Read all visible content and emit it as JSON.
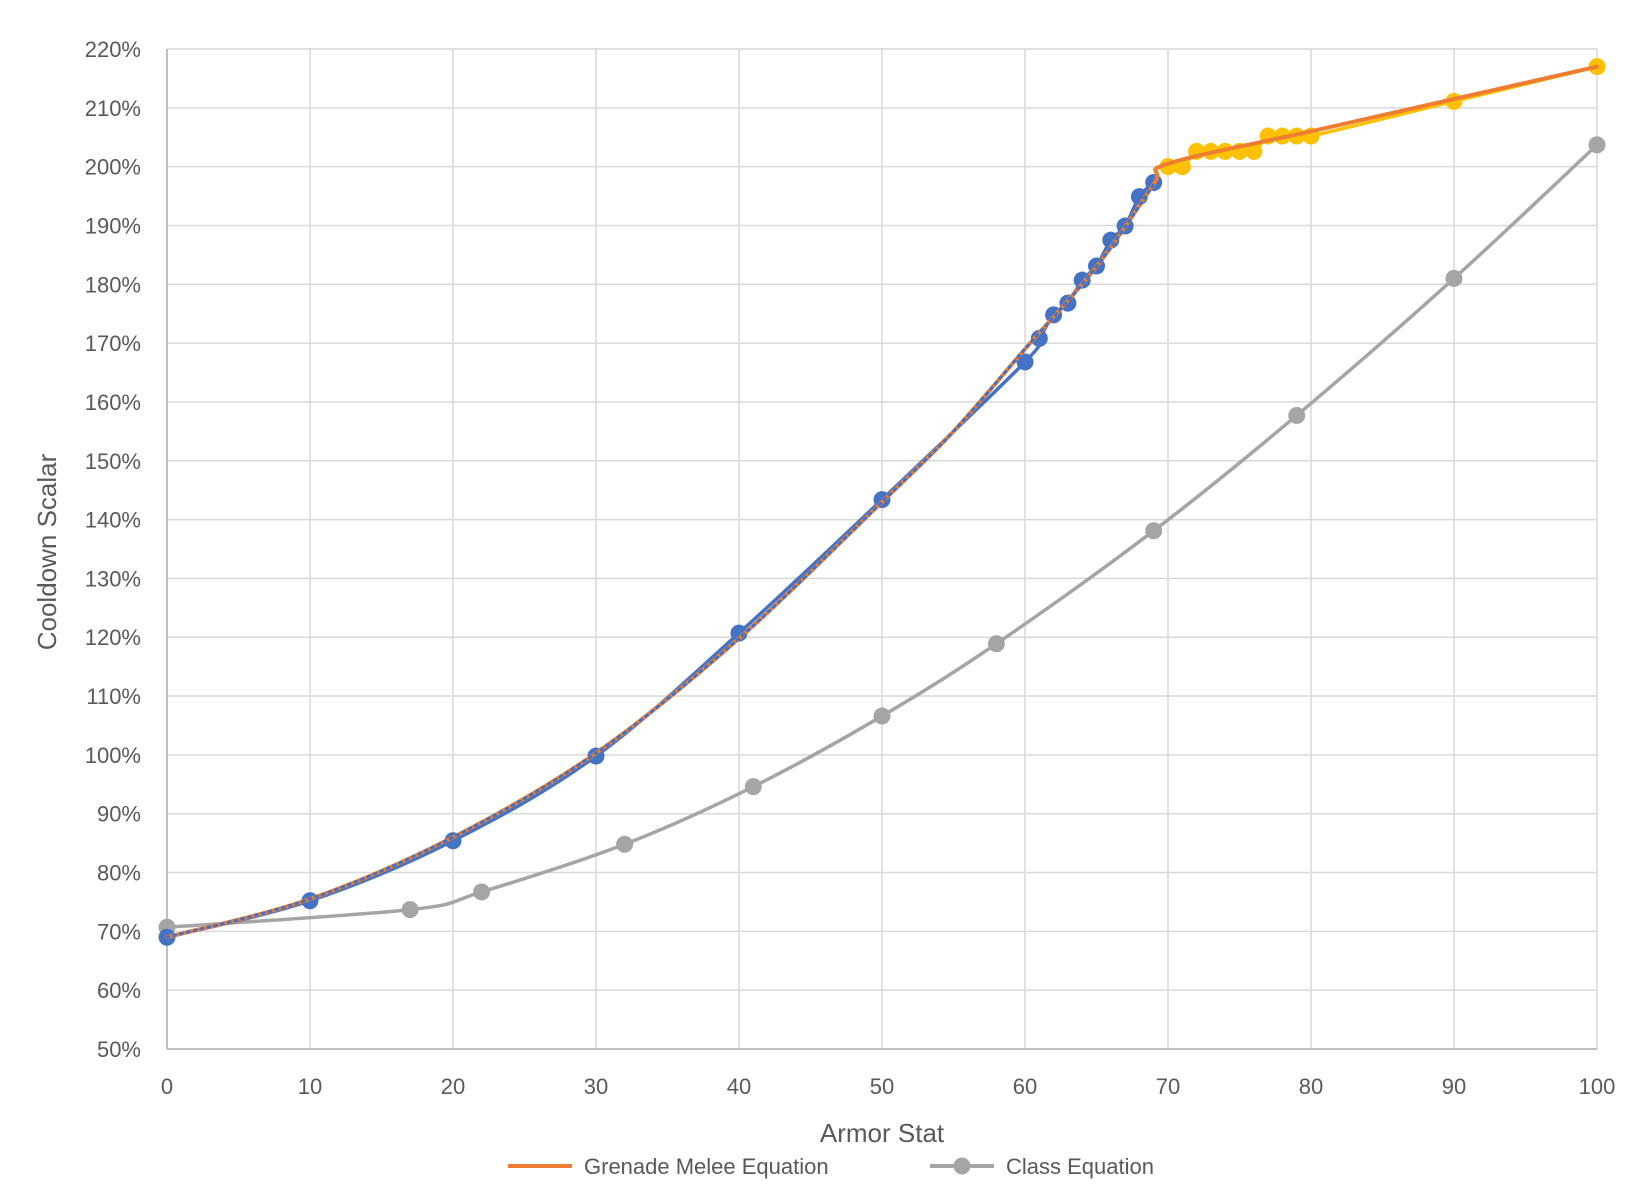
{
  "chart_data": {
    "type": "line",
    "title": "",
    "xlabel": "Armor Stat",
    "ylabel": "Cooldown Scalar",
    "xlim": [
      0,
      100
    ],
    "ylim": [
      0.5,
      2.2
    ],
    "x_ticks": [
      0,
      10,
      20,
      30,
      40,
      50,
      60,
      70,
      80,
      90,
      100
    ],
    "x_tick_labels": [
      "0",
      "10",
      "20",
      "30",
      "40",
      "50",
      "60",
      "70",
      "80",
      "90",
      "100"
    ],
    "y_ticks": [
      0.5,
      0.6,
      0.7,
      0.8,
      0.9,
      1.0,
      1.1,
      1.2,
      1.3,
      1.4,
      1.5,
      1.6,
      1.7,
      1.8,
      1.9,
      2.0,
      2.1,
      2.2
    ],
    "y_tick_labels": [
      "50%",
      "60%",
      "70%",
      "80%",
      "90%",
      "100%",
      "110%",
      "120%",
      "130%",
      "140%",
      "150%",
      "160%",
      "170%",
      "180%",
      "190%",
      "200%",
      "210%",
      "220%"
    ],
    "grid": true,
    "legend_position": "bottom",
    "legend": [
      {
        "label": "Grenade Melee Equation",
        "color": "#ED7D31",
        "marker": false
      },
      {
        "label": "Class Equation",
        "color": "#A5A5A5",
        "marker": true
      }
    ],
    "series": [
      {
        "color": "#4472C4",
        "marker": true,
        "x": [
          0,
          10,
          20,
          30,
          40,
          50,
          60,
          61,
          62,
          63,
          64,
          65,
          66,
          67,
          68,
          69
        ],
        "y": [
          0.69,
          0.752,
          0.854,
          0.998,
          1.207,
          1.434,
          1.668,
          1.708,
          1.748,
          1.768,
          1.807,
          1.831,
          1.875,
          1.899,
          1.949,
          1.973
        ]
      },
      {
        "color": "#FFC000",
        "marker": true,
        "x": [
          70,
          71,
          72,
          73,
          74,
          75,
          76,
          77,
          78,
          79,
          80,
          90,
          100
        ],
        "y": [
          2.0,
          2.0,
          2.026,
          2.026,
          2.026,
          2.026,
          2.026,
          2.052,
          2.052,
          2.052,
          2.052,
          2.111,
          2.17
        ]
      },
      {
        "name": "Grenade Melee Equation",
        "color": "#ED7D31",
        "marker": false,
        "x": [
          0,
          10,
          20,
          30,
          40,
          50,
          55,
          60,
          65,
          69,
          70,
          80,
          90,
          100
        ],
        "y": [
          0.69,
          0.755,
          0.86,
          1.003,
          1.198,
          1.43,
          1.55,
          1.69,
          1.83,
          1.97,
          2.005,
          2.06,
          2.115,
          2.17
        ]
      },
      {
        "name": "Class Equation",
        "color": "#A5A5A5",
        "marker": true,
        "x": [
          0,
          17,
          22,
          32,
          41,
          50,
          58,
          69,
          79,
          90,
          100
        ],
        "y": [
          0.707,
          0.737,
          0.767,
          0.848,
          0.946,
          1.066,
          1.189,
          1.381,
          1.577,
          1.81,
          2.037
        ]
      }
    ]
  }
}
